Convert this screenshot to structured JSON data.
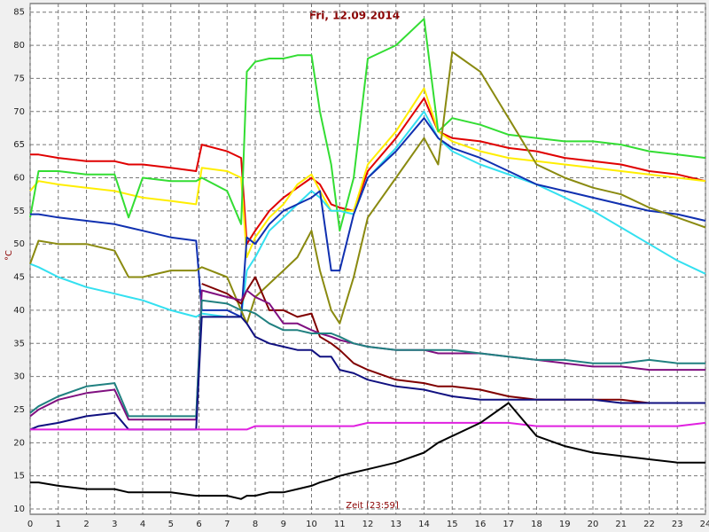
{
  "chart_data": {
    "type": "line",
    "title": "Fri, 12.09.2014",
    "xlabel": "Zeit [23:59]",
    "ylabel": "°C",
    "x": [
      0,
      0.3,
      1,
      2,
      3,
      3.5,
      4,
      5,
      5.9,
      6.1,
      7,
      7.5,
      7.7,
      8,
      8.5,
      9,
      9.5,
      10,
      10.3,
      10.7,
      11,
      11.5,
      12,
      13,
      14,
      14.5,
      15,
      16,
      17,
      18,
      19,
      20,
      21,
      22,
      23,
      24
    ],
    "xlim": [
      0,
      24
    ],
    "xticks": [
      0,
      1,
      2,
      3,
      4,
      5,
      6,
      7,
      8,
      9,
      10,
      11,
      12,
      13,
      14,
      15,
      16,
      17,
      18,
      19,
      20,
      21,
      22,
      23,
      24
    ],
    "ylim": [
      9.2,
      86.3
    ],
    "yticks": [
      10,
      15,
      20,
      25,
      30,
      35,
      40,
      45,
      50,
      55,
      60,
      65,
      70,
      75,
      80,
      85
    ],
    "grid": true,
    "series": [
      {
        "color": "#e00000",
        "values": [
          63.5,
          63.5,
          63,
          62.5,
          62.5,
          62,
          62,
          61.5,
          61,
          65,
          64,
          63,
          50,
          52,
          55,
          57,
          58.5,
          60,
          59,
          56,
          55.5,
          55,
          61,
          66,
          72,
          67,
          66,
          65.5,
          64.5,
          64,
          63,
          62.5,
          62,
          61,
          60.5,
          59.5
        ]
      },
      {
        "color": "#ffee00",
        "values": [
          58,
          59.5,
          59,
          58.5,
          58,
          57.5,
          57,
          56.5,
          56,
          61.5,
          61,
          60,
          48,
          51,
          54,
          56,
          59,
          60.5,
          58,
          55,
          55,
          55,
          62,
          67,
          73.5,
          67,
          65.5,
          64,
          63,
          62.5,
          62,
          61.5,
          61,
          60.5,
          60,
          59.5
        ]
      },
      {
        "color": "#33dd33",
        "values": [
          54,
          61,
          61,
          60.5,
          60.5,
          54,
          60,
          59.5,
          59.5,
          60,
          58,
          53,
          76,
          77.5,
          78,
          78,
          78.5,
          78.5,
          70,
          62,
          52,
          60,
          78,
          80,
          84,
          67,
          69,
          68,
          66.5,
          66,
          65.5,
          65.5,
          65,
          64,
          63.5,
          63
        ]
      },
      {
        "color": "#33e0f0",
        "values": [
          47,
          46.5,
          45,
          43.5,
          42.5,
          42,
          41.5,
          40,
          39,
          39.5,
          39,
          39,
          46,
          48,
          52,
          54,
          56,
          58,
          57,
          55,
          55,
          54.5,
          60,
          64.5,
          70,
          66,
          64,
          62,
          60.5,
          59,
          57,
          55,
          52.5,
          50,
          47.5,
          45.5
        ]
      },
      {
        "color": "#1030b0",
        "values": [
          54.5,
          54.5,
          54,
          53.5,
          53,
          52.5,
          52,
          51,
          50.5,
          40,
          40,
          39,
          51,
          50,
          53,
          55,
          56,
          57,
          58,
          46,
          46,
          54.5,
          60,
          64,
          69,
          66,
          64.5,
          63,
          61,
          59,
          58,
          57,
          56,
          55,
          54.5,
          53.5
        ]
      },
      {
        "color": "#8a8a10",
        "values": [
          47,
          50.5,
          50,
          50,
          49,
          45,
          45,
          46,
          46,
          46.5,
          45,
          40,
          38,
          42,
          44,
          46,
          48,
          52,
          46,
          40,
          38,
          45,
          54,
          60,
          66,
          62,
          79,
          76,
          69,
          62,
          60,
          58.5,
          57.5,
          55.5,
          54,
          52.5
        ]
      },
      {
        "color": "#800000",
        "values": [
          null,
          null,
          null,
          null,
          null,
          null,
          null,
          null,
          null,
          44,
          42.5,
          41,
          43,
          45,
          40,
          40,
          39,
          39.5,
          36,
          35,
          34,
          32,
          31,
          29.5,
          29,
          28.5,
          28.5,
          28,
          27,
          26.5,
          26.5,
          26.5,
          26.5,
          26,
          26,
          26
        ]
      },
      {
        "color": "#801080",
        "values": [
          24,
          25,
          26.5,
          27.5,
          28,
          23.5,
          23.5,
          23.5,
          23.5,
          43,
          42,
          41.5,
          43,
          42,
          41,
          38,
          38,
          37,
          36.5,
          36,
          35.5,
          35,
          34.5,
          34,
          34,
          33.5,
          33.5,
          33.5,
          33,
          32.5,
          32,
          31.5,
          31.5,
          31,
          31,
          31
        ]
      },
      {
        "color": "#208080",
        "values": [
          24.5,
          25.5,
          27,
          28.5,
          29,
          24,
          24,
          24,
          24,
          41.5,
          41,
          40,
          40,
          39.5,
          38,
          37,
          37,
          36.5,
          36.5,
          36.5,
          36,
          35,
          34.5,
          34,
          34,
          34,
          34,
          33.5,
          33,
          32.5,
          32.5,
          32,
          32,
          32.5,
          32,
          32
        ]
      },
      {
        "color": "#101080",
        "values": [
          22,
          22.5,
          23,
          24,
          24.5,
          22,
          22,
          22,
          22,
          39,
          39,
          39,
          38,
          36,
          35,
          34.5,
          34,
          34,
          33,
          33,
          31,
          30.5,
          29.5,
          28.5,
          28,
          27.5,
          27,
          26.5,
          26.5,
          26.5,
          26.5,
          26.5,
          26,
          26,
          26,
          26
        ]
      },
      {
        "color": "#e020e0",
        "values": [
          22,
          22,
          22,
          22,
          22,
          22,
          22,
          22,
          22,
          22,
          22,
          22,
          22,
          22.5,
          22.5,
          22.5,
          22.5,
          22.5,
          22.5,
          22.5,
          22.5,
          22.5,
          23,
          23,
          23,
          23,
          23,
          23,
          23,
          22.5,
          22.5,
          22.5,
          22.5,
          22.5,
          22.5,
          23
        ]
      },
      {
        "color": "#000000",
        "values": [
          14,
          14,
          13.5,
          13,
          13,
          12.5,
          12.5,
          12.5,
          12,
          12,
          12,
          11.5,
          12,
          12,
          12.5,
          12.5,
          13,
          13.5,
          14,
          14.5,
          15,
          15.5,
          16,
          17,
          18.5,
          20,
          21,
          23,
          26,
          21,
          19.5,
          18.5,
          18,
          17.5,
          17,
          17
        ]
      }
    ]
  }
}
